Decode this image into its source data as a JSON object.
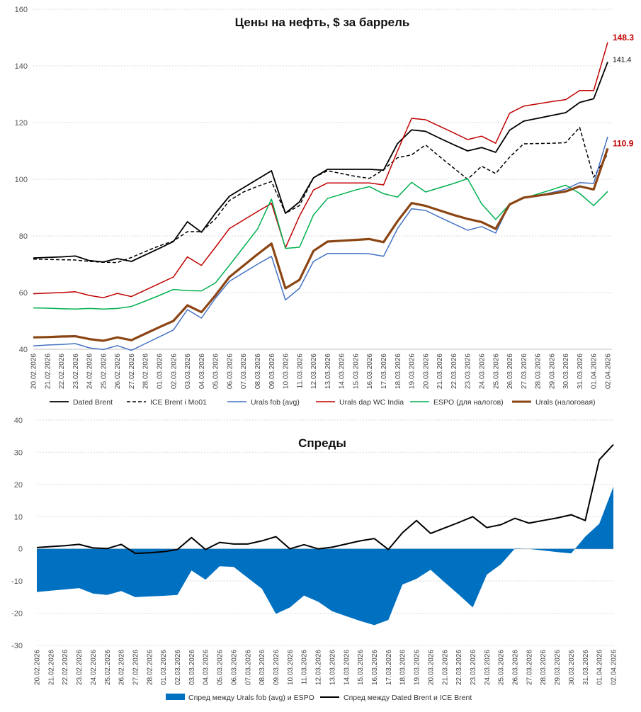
{
  "chart_data": [
    {
      "type": "line",
      "title": "Цены на нефть, $ за баррель",
      "xlabel": "",
      "ylabel": "",
      "ylim": [
        40,
        160
      ],
      "yticks": [
        40,
        60,
        80,
        100,
        120,
        140,
        160
      ],
      "grid": true,
      "legend_position": "bottom",
      "categories": [
        "20.02.2026",
        "21.02.2026",
        "22.02.2026",
        "23.02.2026",
        "24.02.2026",
        "25.02.2026",
        "26.02.2026",
        "27.02.2026",
        "28.02.2026",
        "01.03.2026",
        "02.03.2026",
        "03.03.2026",
        "04.03.2026",
        "05.03.2026",
        "06.03.2026",
        "07.03.2026",
        "08.03.2026",
        "09.03.2026",
        "10.03.2026",
        "11.03.2026",
        "12.03.2026",
        "13.03.2026",
        "14.03.2026",
        "15.03.2026",
        "16.03.2026",
        "17.03.2026",
        "18.03.2026",
        "19.03.2026",
        "20.03.2026",
        "21.03.2026",
        "22.03.2026",
        "23.03.2026",
        "24.03.2026",
        "25.03.2026",
        "26.03.2026",
        "27.03.2026",
        "28.03.2026",
        "29.03.2026",
        "30.03.2026",
        "31.03.2026",
        "01.04.2026",
        "02.04.2026"
      ],
      "series": [
        {
          "name": "Dated Brent",
          "color": "#000000",
          "dash": "",
          "width": 1.8,
          "values": [
            72.2,
            72.4,
            72.6,
            72.9,
            71.3,
            70.8,
            72.0,
            71.0,
            73.3,
            75.6,
            78.0,
            85.0,
            81.3,
            88.0,
            94.0,
            97.0,
            100.0,
            103.0,
            88.0,
            92.0,
            100.5,
            103.5,
            103.5,
            103.5,
            103.5,
            103.2,
            112.6,
            117.4,
            116.9,
            114.5,
            112.2,
            110.0,
            111.2,
            109.5,
            117.3,
            120.5,
            121.5,
            122.5,
            123.5,
            127.1,
            128.4,
            141.4
          ]
        },
        {
          "name": "ICE Brent  i Mo01",
          "color": "#000000",
          "dash": "5 3",
          "width": 1.5,
          "values": [
            71.8,
            71.7,
            71.6,
            71.5,
            71.0,
            70.7,
            70.6,
            72.4,
            74.5,
            76.5,
            78.2,
            81.5,
            81.5,
            86.0,
            92.5,
            95.5,
            97.5,
            99.2,
            88.0,
            90.7,
            100.5,
            103.0,
            102.0,
            101.0,
            100.3,
            103.4,
            107.6,
            108.6,
            112.1,
            108.0,
            104.0,
            100.0,
            104.6,
            102.0,
            107.8,
            112.5,
            112.6,
            112.7,
            112.9,
            118.3,
            100.7,
            109.0
          ]
        },
        {
          "name": "Urals fob (avg)",
          "color": "#4472C4",
          "dash": "",
          "width": 1.5,
          "values": [
            41.2,
            41.5,
            41.7,
            42.0,
            40.5,
            39.9,
            41.3,
            39.6,
            42.0,
            44.4,
            46.8,
            54.0,
            51.0,
            58.0,
            64.0,
            67.0,
            70.0,
            72.8,
            57.4,
            61.5,
            71.0,
            73.8,
            73.8,
            73.8,
            73.7,
            72.8,
            82.6,
            89.6,
            89.0,
            86.6,
            84.3,
            82.0,
            83.3,
            81.0,
            91.3,
            93.3,
            94.3,
            95.3,
            96.5,
            98.8,
            98.5,
            115.0
          ]
        },
        {
          "name": "Urals dap WC India",
          "color": "#C00000",
          "dash": "",
          "width": 1.5,
          "values": [
            59.6,
            59.8,
            60.0,
            60.3,
            59.0,
            58.2,
            59.7,
            58.6,
            60.9,
            63.2,
            65.5,
            72.6,
            69.6,
            76.0,
            82.6,
            85.6,
            88.6,
            91.5,
            75.8,
            87.0,
            96.2,
            98.7,
            98.7,
            98.7,
            98.7,
            98.0,
            110.0,
            121.5,
            121.0,
            118.7,
            116.4,
            114.0,
            115.2,
            112.7,
            123.3,
            125.8,
            126.6,
            127.4,
            128.1,
            131.3,
            131.3,
            148.3
          ]
        },
        {
          "name": "ESPO (для налогов)",
          "color": "#00B050",
          "dash": "",
          "width": 1.5,
          "values": [
            54.6,
            54.5,
            54.3,
            54.2,
            54.4,
            54.2,
            54.4,
            55.1,
            57.0,
            59.0,
            61.1,
            60.7,
            60.6,
            63.4,
            69.6,
            76.0,
            82.4,
            93.0,
            75.6,
            76.0,
            87.4,
            93.2,
            94.7,
            96.2,
            97.4,
            94.9,
            93.7,
            98.9,
            95.5,
            97.0,
            98.5,
            100.2,
            91.3,
            85.8,
            91.2,
            93.3,
            94.8,
            96.3,
            97.9,
            95.0,
            90.7,
            95.7
          ]
        },
        {
          "name": "Urals (налоговая)",
          "color": "#8B4513",
          "dash": "",
          "width": 3.2,
          "values": [
            44.2,
            44.3,
            44.5,
            44.6,
            43.6,
            43.0,
            44.2,
            43.2,
            45.5,
            47.8,
            50.0,
            55.5,
            53.1,
            59.0,
            65.5,
            69.5,
            73.5,
            77.3,
            61.5,
            64.5,
            74.7,
            78.0,
            78.3,
            78.6,
            78.9,
            77.8,
            85.2,
            91.6,
            90.6,
            89.0,
            87.4,
            86.0,
            84.9,
            82.5,
            91.1,
            93.5,
            94.2,
            94.9,
            95.7,
            97.5,
            96.4,
            110.9
          ]
        }
      ],
      "annotations": [
        {
          "text": "148.3",
          "color": "#C00000",
          "bold": true,
          "y": 148.3
        },
        {
          "text": "141.4",
          "color": "#000000",
          "bold": false,
          "y": 141.4
        },
        {
          "text": "110.9",
          "color": "#C00000",
          "bold": true,
          "y": 110.9
        }
      ]
    },
    {
      "type": "area",
      "title": "Спреды",
      "xlabel": "",
      "ylabel": "",
      "ylim": [
        -30,
        40
      ],
      "yticks": [
        -30,
        -20,
        -10,
        0,
        10,
        20,
        30,
        40
      ],
      "grid": true,
      "legend_position": "bottom",
      "categories": [
        "20.02.2026",
        "21.02.2026",
        "22.02.2026",
        "23.02.2026",
        "24.02.2026",
        "25.02.2026",
        "26.02.2026",
        "27.02.2026",
        "28.02.2026",
        "01.03.2026",
        "02.03.2026",
        "03.03.2026",
        "04.03.2026",
        "05.03.2026",
        "06.03.2026",
        "07.03.2026",
        "08.03.2026",
        "09.03.2026",
        "10.03.2026",
        "11.03.2026",
        "12.03.2026",
        "13.03.2026",
        "14.03.2026",
        "15.03.2026",
        "16.03.2026",
        "17.03.2026",
        "18.03.2026",
        "19.03.2026",
        "20.03.2026",
        "21.03.2026",
        "22.03.2026",
        "23.03.2026",
        "24.03.2026",
        "25.03.2026",
        "26.03.2026",
        "27.03.2026",
        "28.03.2026",
        "29.03.2026",
        "30.03.2026",
        "31.03.2026",
        "01.04.2026",
        "02.04.2026"
      ],
      "series": [
        {
          "name": "Спред между  Urals fob (avg) и ESPO",
          "kind": "area",
          "color": "#0070C0",
          "values": [
            -13.4,
            -13.0,
            -12.6,
            -12.2,
            -13.9,
            -14.3,
            -13.1,
            -15.0,
            -14.8,
            -14.6,
            -14.3,
            -6.7,
            -9.6,
            -5.4,
            -5.6,
            -9.0,
            -12.4,
            -20.2,
            -18.2,
            -14.5,
            -16.4,
            -19.4,
            -20.9,
            -22.4,
            -23.7,
            -22.1,
            -11.1,
            -9.3,
            -6.5,
            -10.4,
            -14.2,
            -18.2,
            -8.0,
            -4.8,
            0.1,
            0.0,
            -0.5,
            -1.0,
            -1.4,
            3.8,
            7.8,
            19.3
          ]
        },
        {
          "name": "Спред между  Dated Brent и ICE Brent",
          "kind": "line",
          "color": "#000000",
          "values": [
            0.4,
            0.7,
            1.0,
            1.4,
            0.3,
            0.1,
            1.4,
            -1.4,
            -1.2,
            -0.9,
            -0.2,
            3.5,
            -0.2,
            2.0,
            1.5,
            1.5,
            2.5,
            3.8,
            0.0,
            1.3,
            0.0,
            0.5,
            1.5,
            2.5,
            3.2,
            -0.2,
            5.0,
            8.8,
            4.8,
            6.5,
            8.2,
            10.0,
            6.6,
            7.5,
            9.5,
            8.0,
            8.8,
            9.6,
            10.6,
            8.8,
            27.7,
            32.4
          ]
        }
      ]
    }
  ]
}
